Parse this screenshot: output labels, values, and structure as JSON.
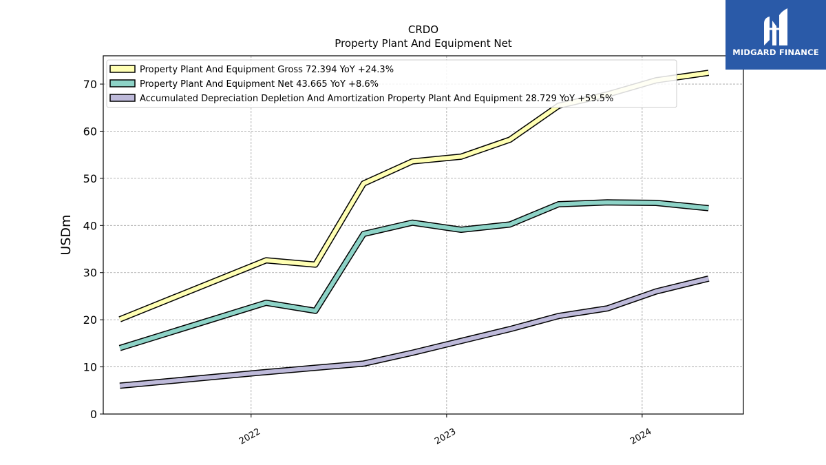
{
  "logo": {
    "text": "MIDGARD FINANCE"
  },
  "chart_data": {
    "type": "line",
    "title": "CRDO",
    "subtitle": "Property Plant And Equipment Net",
    "ylabel": "USDm",
    "xlabel": "",
    "ylim": [
      0,
      76
    ],
    "yticks": [
      0,
      10,
      20,
      30,
      40,
      50,
      60,
      70
    ],
    "xlim": [
      "2021-03-31",
      "2024-07-08"
    ],
    "xticks": [
      {
        "date": "2022-01-01",
        "label": "2022"
      },
      {
        "date": "2023-01-01",
        "label": "2023"
      },
      {
        "date": "2024-01-01",
        "label": "2024"
      }
    ],
    "grid": true,
    "legend_position": "top-left",
    "x": [
      "2021-05-01",
      "2022-01-29",
      "2022-05-01",
      "2022-07-30",
      "2022-10-29",
      "2023-01-28",
      "2023-04-29",
      "2023-07-29",
      "2023-10-28",
      "2024-01-27",
      "2024-05-04"
    ],
    "series": [
      {
        "name": "Property Plant And Equipment Gross",
        "legend": "Property Plant And Equipment Gross  72.394 YoY +24.3%",
        "color": "#ffffb3",
        "values": [
          20.1,
          32.6,
          31.7,
          48.9,
          53.6,
          54.6,
          58.2,
          65.4,
          67.8,
          70.8,
          72.394
        ]
      },
      {
        "name": "Property Plant And Equipment Net",
        "legend": "Property Plant And Equipment Net  43.665 YoY +8.6%",
        "color": "#8dd3c7",
        "values": [
          14.0,
          23.6,
          21.9,
          38.2,
          40.6,
          39.1,
          40.2,
          44.5,
          44.9,
          44.8,
          43.665
        ]
      },
      {
        "name": "Accumulated Depreciation Depletion And Amortization Property Plant And Equipment",
        "legend": "Accumulated Depreciation Depletion And Amortization Property Plant And Equipment  28.729 YoY +59.5%",
        "color": "#bebada",
        "values": [
          6.0,
          8.9,
          9.8,
          10.7,
          13.0,
          15.5,
          18.0,
          20.8,
          22.4,
          26.0,
          28.729
        ]
      }
    ]
  }
}
